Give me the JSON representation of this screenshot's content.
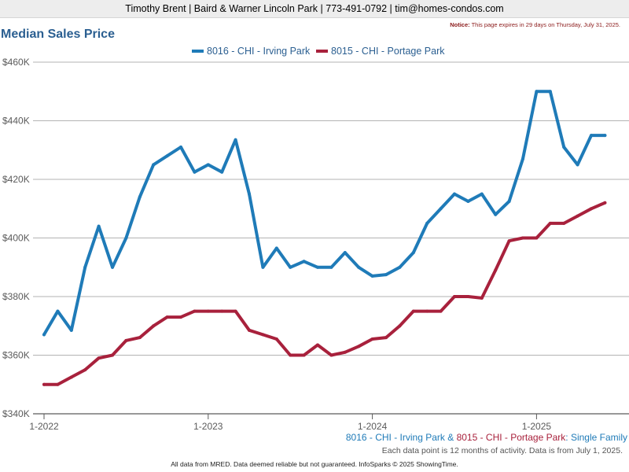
{
  "header": {
    "text": "Timothy Brent | Baird & Warner Lincoln Park | 773-491-0792 | tim@homes-condos.com"
  },
  "notice": {
    "label": "Notice:",
    "text": "This page expires in 29 days on Thursday, July 31, 2025."
  },
  "colors": {
    "series1": "#1f7bb8",
    "series2": "#a8213c",
    "title": "#2b5f91",
    "grid": "#b3b3b3",
    "axis": "#5a5a5a"
  },
  "chart_data": {
    "type": "line",
    "title": "Median Sales Price",
    "xlabel": "",
    "ylabel": "",
    "x_start": "2022-01",
    "x_ticks": [
      "1-2022",
      "1-2023",
      "1-2024",
      "1-2025"
    ],
    "y_ticks": [
      "$340K",
      "$360K",
      "$380K",
      "$400K",
      "$420K",
      "$440K",
      "$460K"
    ],
    "ylim": [
      340000,
      460000
    ],
    "grid": true,
    "legend_position": "top-center",
    "series": [
      {
        "name": "8016 - CHI - Irving Park",
        "color": "#1f7bb8",
        "values": [
          367000,
          375000,
          368500,
          390000,
          404000,
          390000,
          400000,
          414000,
          425000,
          428000,
          431000,
          422500,
          425000,
          422500,
          433500,
          415000,
          390000,
          396500,
          390000,
          392000,
          390000,
          390000,
          395000,
          390000,
          387000,
          387500,
          390000,
          395000,
          405000,
          410000,
          415000,
          412500,
          415000,
          408000,
          412500,
          427000,
          450000,
          450000,
          431000,
          425000,
          435000,
          435000
        ]
      },
      {
        "name": "8015 - CHI - Portage Park",
        "color": "#a8213c",
        "values": [
          350000,
          350000,
          352500,
          355000,
          359000,
          360000,
          365000,
          366000,
          370000,
          373000,
          373000,
          375000,
          375000,
          375000,
          375000,
          368500,
          367000,
          365500,
          360000,
          360000,
          363500,
          360000,
          361000,
          363000,
          365500,
          366000,
          370000,
          375000,
          375000,
          375000,
          380000,
          380000,
          379500,
          389000,
          399000,
          400000,
          400000,
          405000,
          405000,
          407500,
          410000,
          412000
        ]
      }
    ]
  },
  "footer": {
    "series1": "8016 - CHI - Irving Park",
    "amp": " & ",
    "series2": "8015 - CHI - Portage Park",
    "suffix": ": Single Family",
    "note": "Each data point is 12 months of activity. Data is from July 1, 2025.",
    "disclaimer": "All data from MRED. Data deemed reliable but not guaranteed. InfoSparks © 2025 ShowingTime."
  }
}
